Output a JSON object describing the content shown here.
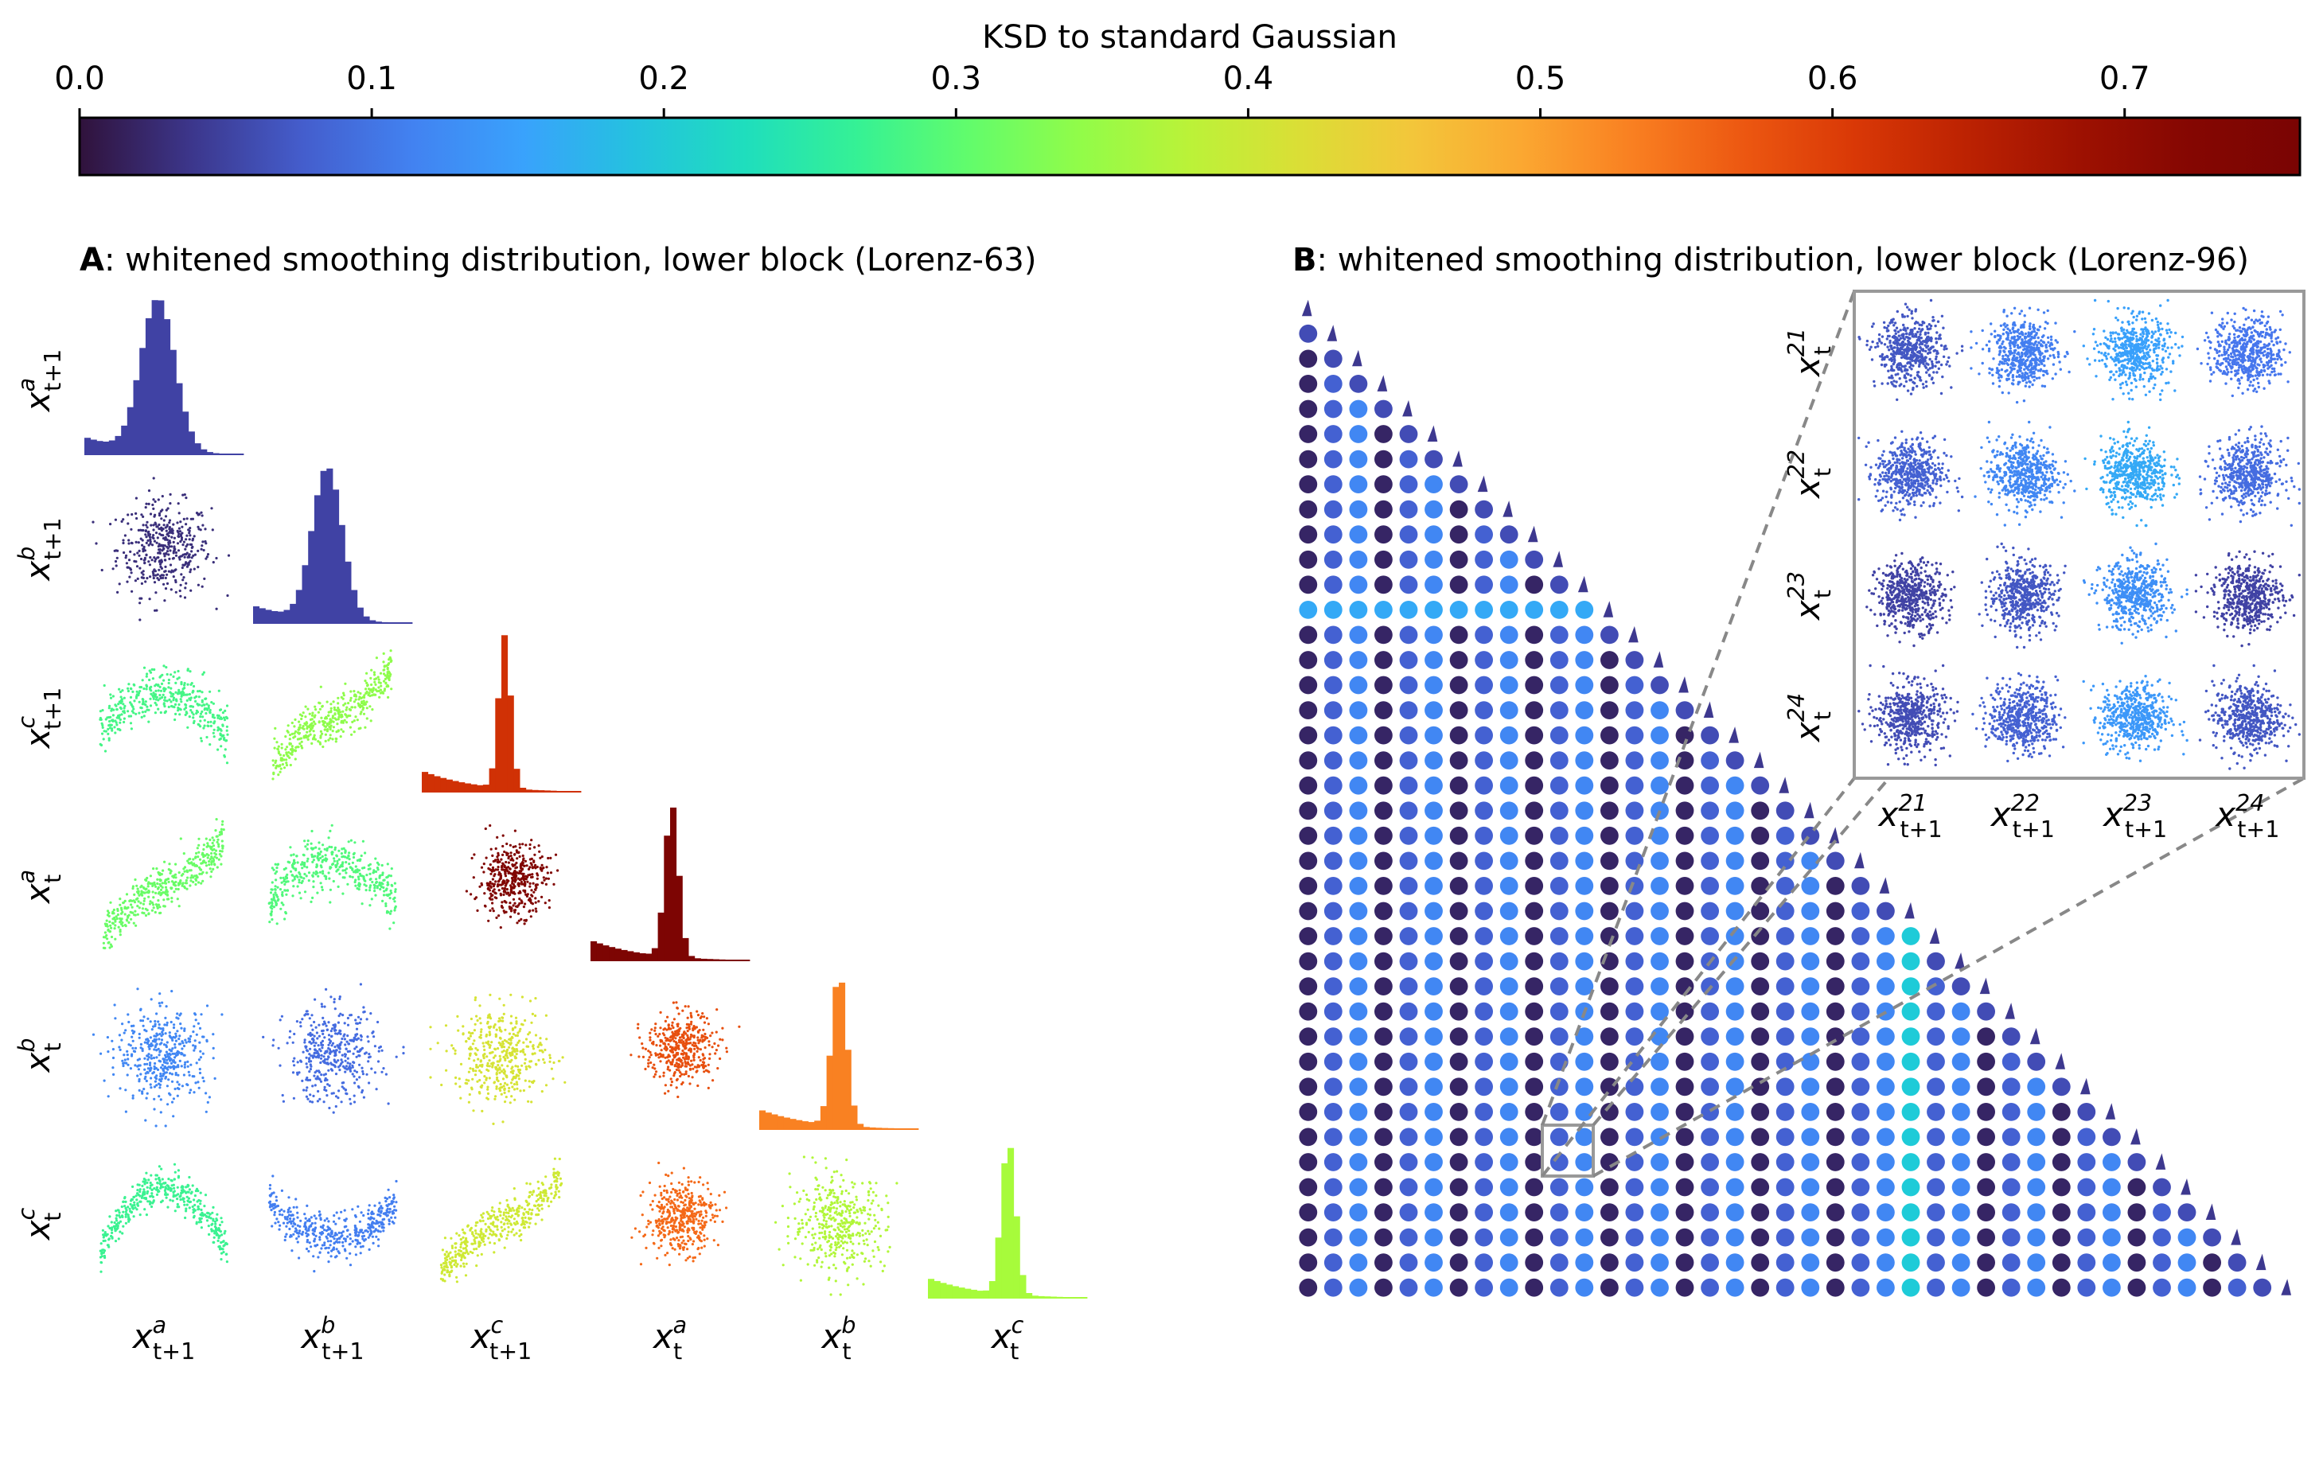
{
  "colorbar": {
    "label": "KSD to standard Gaussian",
    "ticks": [
      "0.0",
      "0.1",
      "0.2",
      "0.3",
      "0.4",
      "0.5",
      "0.6",
      "0.7"
    ],
    "min": 0.0,
    "max": 0.76,
    "colormap": "turbo"
  },
  "panelA": {
    "letter": "A",
    "title": ": whitened smoothing distribution, lower block (Lorenz-63)",
    "axis_labels": [
      {
        "base": "x",
        "sup": "a",
        "sub": "t+1"
      },
      {
        "base": "x",
        "sup": "b",
        "sub": "t+1"
      },
      {
        "base": "x",
        "sup": "c",
        "sub": "t+1"
      },
      {
        "base": "x",
        "sup": "a",
        "sub": "t"
      },
      {
        "base": "x",
        "sup": "b",
        "sub": "t"
      },
      {
        "base": "x",
        "sup": "c",
        "sub": "t"
      }
    ]
  },
  "panelB": {
    "letter": "B",
    "title": ": whitened smoothing distribution, lower block (Lorenz-96)",
    "inset_row_labels": [
      {
        "base": "x",
        "sup": "21",
        "sub": "t"
      },
      {
        "base": "x",
        "sup": "22",
        "sub": "t"
      },
      {
        "base": "x",
        "sup": "23",
        "sub": "t"
      },
      {
        "base": "x",
        "sup": "24",
        "sub": "t"
      }
    ],
    "inset_col_labels": [
      {
        "base": "x",
        "sup": "21",
        "sub": "t+1"
      },
      {
        "base": "x",
        "sup": "22",
        "sub": "t+1"
      },
      {
        "base": "x",
        "sup": "23",
        "sub": "t+1"
      },
      {
        "base": "x",
        "sup": "24",
        "sub": "t+1"
      }
    ]
  },
  "chart_data": [
    {
      "type": "heatmap",
      "title": "A: whitened smoothing distribution, lower block (Lorenz-63)",
      "variables": [
        "x^a_{t+1}",
        "x^b_{t+1}",
        "x^c_{t+1}",
        "x^a_t",
        "x^b_t",
        "x^c_t"
      ],
      "colorbar_label": "KSD to standard Gaussian",
      "colorbar_range": [
        0.0,
        0.76
      ],
      "lower_triangle_ksd": [
        [
          0.05
        ],
        [
          0.03,
          0.05
        ],
        [
          0.28,
          0.34,
          0.62
        ],
        [
          0.31,
          0.29,
          0.74,
          0.75
        ],
        [
          0.12,
          0.09,
          0.41,
          0.58,
          0.53
        ],
        [
          0.27,
          0.11,
          0.4,
          0.55,
          0.37,
          0.36
        ]
      ],
      "diagonal": "histogram",
      "off_diagonal": "scatter"
    },
    {
      "type": "heatmap",
      "title": "B: whitened smoothing distribution, lower block (Lorenz-96)",
      "grid_size": 40,
      "colorbar_label": "KSD to standard Gaussian",
      "colorbar_range": [
        0.0,
        0.76
      ],
      "inset_rows": [
        "x^21_t",
        "x^22_t",
        "x^23_t",
        "x^24_t"
      ],
      "inset_cols": [
        "x^21_{t+1}",
        "x^22_{t+1}",
        "x^23_{t+1}",
        "x^24_{t+1}"
      ],
      "inset_ksd": [
        [
          0.07,
          0.11,
          0.15,
          0.1
        ],
        [
          0.08,
          0.12,
          0.16,
          0.09
        ],
        [
          0.05,
          0.07,
          0.13,
          0.05
        ],
        [
          0.06,
          0.08,
          0.14,
          0.07
        ]
      ]
    }
  ]
}
